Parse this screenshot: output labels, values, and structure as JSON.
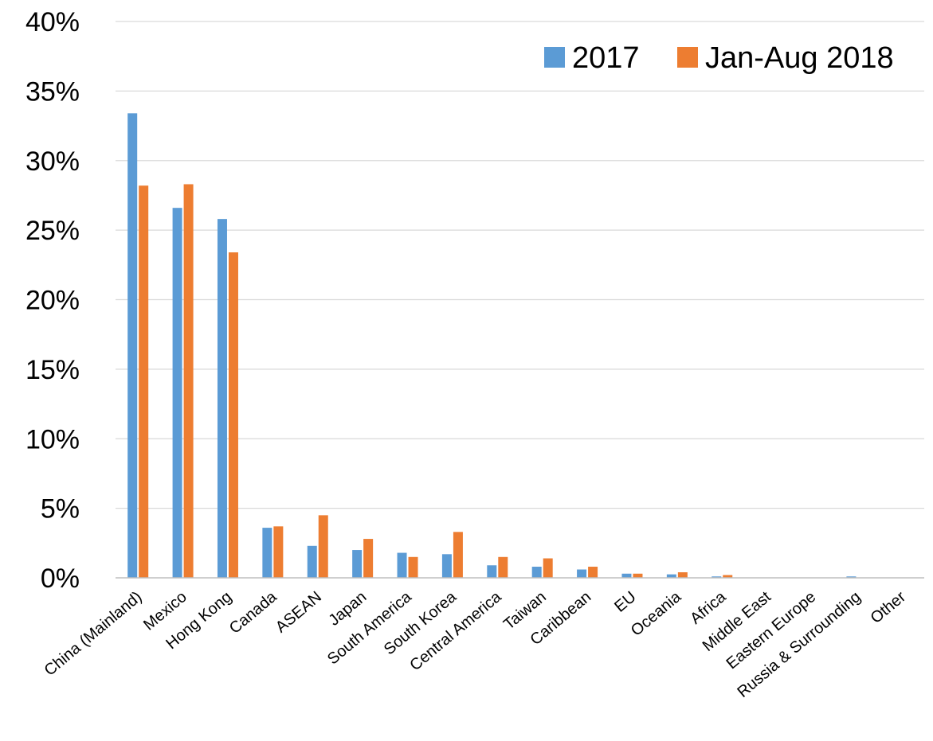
{
  "chart_data": {
    "type": "bar",
    "title": "",
    "xlabel": "",
    "ylabel": "",
    "ylim": [
      0,
      40
    ],
    "y_ticks": [
      "0%",
      "5%",
      "10%",
      "15%",
      "20%",
      "25%",
      "30%",
      "35%",
      "40%"
    ],
    "y_tick_values": [
      0,
      5,
      10,
      15,
      20,
      25,
      30,
      35,
      40
    ],
    "grid": "horizontal",
    "legend_position": "top-right",
    "categories": [
      "China (Mainland)",
      "Mexico",
      "Hong Kong",
      "Canada",
      "ASEAN",
      "Japan",
      "South America",
      "South Korea",
      "Central America",
      "Taiwan",
      "Caribbean",
      "EU",
      "Oceania",
      "Africa",
      "Middle East",
      "Eastern Europe",
      "Russia & Surrounding",
      "Other"
    ],
    "series": [
      {
        "name": "2017",
        "color": "#5b9bd5",
        "values": [
          33.4,
          26.6,
          25.8,
          3.6,
          2.3,
          2.0,
          1.8,
          1.7,
          0.9,
          0.8,
          0.6,
          0.3,
          0.25,
          0.1,
          0.02,
          0.02,
          0.1,
          0.02
        ]
      },
      {
        "name": "Jan-Aug 2018",
        "color": "#ed7d31",
        "values": [
          28.2,
          28.3,
          23.4,
          3.7,
          4.5,
          2.8,
          1.5,
          3.3,
          1.5,
          1.4,
          0.8,
          0.3,
          0.4,
          0.2,
          0.02,
          0.02,
          0.02,
          0.02
        ]
      }
    ]
  }
}
